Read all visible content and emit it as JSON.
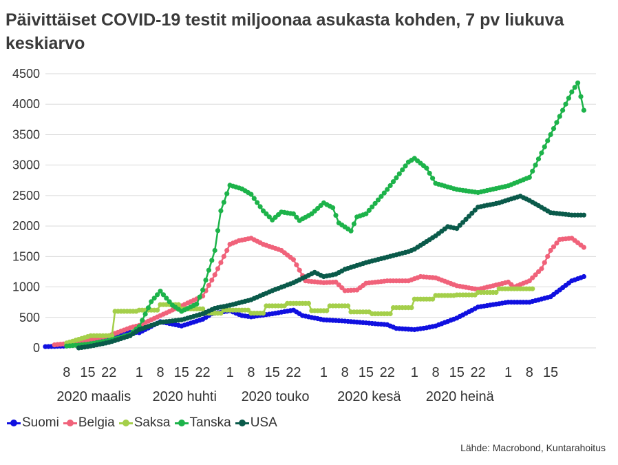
{
  "title": "Päivittäiset COVID-19 testit miljoonaa asukasta kohden, 7 pv liukuva keskiarvo",
  "source": "Lähde: Macrobond, Kuntarahoitus",
  "chart_data": {
    "type": "line",
    "ylim": [
      0,
      4500
    ],
    "yticks": [
      0,
      500,
      1000,
      1500,
      2000,
      2500,
      3000,
      3500,
      4000,
      4500
    ],
    "grid": true,
    "legend_position": "bottom-left",
    "x_day_ticks": [
      {
        "date": "2020-03-08",
        "label": "8"
      },
      {
        "date": "2020-03-15",
        "label": "15"
      },
      {
        "date": "2020-03-22",
        "label": "22"
      },
      {
        "date": "2020-04-01",
        "label": "1"
      },
      {
        "date": "2020-04-08",
        "label": "8"
      },
      {
        "date": "2020-04-15",
        "label": "15"
      },
      {
        "date": "2020-04-22",
        "label": "22"
      },
      {
        "date": "2020-05-01",
        "label": "1"
      },
      {
        "date": "2020-05-08",
        "label": "8"
      },
      {
        "date": "2020-05-15",
        "label": "15"
      },
      {
        "date": "2020-05-22",
        "label": "22"
      },
      {
        "date": "2020-06-01",
        "label": "1"
      },
      {
        "date": "2020-06-08",
        "label": "8"
      },
      {
        "date": "2020-06-15",
        "label": "15"
      },
      {
        "date": "2020-06-22",
        "label": "22"
      },
      {
        "date": "2020-07-01",
        "label": "1"
      },
      {
        "date": "2020-07-08",
        "label": "8"
      },
      {
        "date": "2020-07-15",
        "label": "15"
      },
      {
        "date": "2020-07-22",
        "label": "22"
      },
      {
        "date": "2020-08-01",
        "label": "1"
      },
      {
        "date": "2020-08-08",
        "label": "8"
      },
      {
        "date": "2020-08-15",
        "label": "15"
      }
    ],
    "x_month_labels": [
      {
        "date": "2020-03-17",
        "label": "2020 maalis"
      },
      {
        "date": "2020-04-16",
        "label": "2020 huhti"
      },
      {
        "date": "2020-05-16",
        "label": "2020 touko"
      },
      {
        "date": "2020-06-16",
        "label": "2020 kesä"
      },
      {
        "date": "2020-07-16",
        "label": "2020 heinä"
      }
    ],
    "series": [
      {
        "name": "Suomi",
        "color": "#1010e0",
        "points": [
          [
            "2020-03-01",
            20
          ],
          [
            "2020-03-08",
            30
          ],
          [
            "2020-03-15",
            70
          ],
          [
            "2020-03-22",
            180
          ],
          [
            "2020-03-27",
            270
          ],
          [
            "2020-04-01",
            250
          ],
          [
            "2020-04-08",
            430
          ],
          [
            "2020-04-15",
            360
          ],
          [
            "2020-04-22",
            470
          ],
          [
            "2020-04-25",
            560
          ],
          [
            "2020-05-01",
            610
          ],
          [
            "2020-05-05",
            530
          ],
          [
            "2020-05-08",
            510
          ],
          [
            "2020-05-15",
            560
          ],
          [
            "2020-05-22",
            620
          ],
          [
            "2020-05-25",
            530
          ],
          [
            "2020-06-01",
            460
          ],
          [
            "2020-06-08",
            440
          ],
          [
            "2020-06-15",
            410
          ],
          [
            "2020-06-22",
            380
          ],
          [
            "2020-06-25",
            320
          ],
          [
            "2020-07-01",
            300
          ],
          [
            "2020-07-05",
            330
          ],
          [
            "2020-07-08",
            360
          ],
          [
            "2020-07-15",
            490
          ],
          [
            "2020-07-22",
            670
          ],
          [
            "2020-08-01",
            750
          ],
          [
            "2020-08-08",
            750
          ],
          [
            "2020-08-15",
            840
          ],
          [
            "2020-08-22",
            1100
          ],
          [
            "2020-08-26",
            1170
          ]
        ]
      },
      {
        "name": "Belgia",
        "color": "#f0627a",
        "points": [
          [
            "2020-03-04",
            50
          ],
          [
            "2020-03-08",
            70
          ],
          [
            "2020-03-15",
            130
          ],
          [
            "2020-03-22",
            200
          ],
          [
            "2020-03-29",
            330
          ],
          [
            "2020-04-01",
            370
          ],
          [
            "2020-04-08",
            530
          ],
          [
            "2020-04-15",
            690
          ],
          [
            "2020-04-22",
            850
          ],
          [
            "2020-04-26",
            1200
          ],
          [
            "2020-05-01",
            1700
          ],
          [
            "2020-05-04",
            1760
          ],
          [
            "2020-05-08",
            1800
          ],
          [
            "2020-05-12",
            1700
          ],
          [
            "2020-05-18",
            1600
          ],
          [
            "2020-05-22",
            1450
          ],
          [
            "2020-05-26",
            1100
          ],
          [
            "2020-06-01",
            1070
          ],
          [
            "2020-06-05",
            1080
          ],
          [
            "2020-06-08",
            940
          ],
          [
            "2020-06-12",
            950
          ],
          [
            "2020-06-15",
            1060
          ],
          [
            "2020-06-22",
            1100
          ],
          [
            "2020-06-29",
            1100
          ],
          [
            "2020-07-03",
            1170
          ],
          [
            "2020-07-08",
            1150
          ],
          [
            "2020-07-15",
            1020
          ],
          [
            "2020-07-22",
            960
          ],
          [
            "2020-08-01",
            1080
          ],
          [
            "2020-08-03",
            1000
          ],
          [
            "2020-08-08",
            1100
          ],
          [
            "2020-08-12",
            1300
          ],
          [
            "2020-08-15",
            1600
          ],
          [
            "2020-08-18",
            1780
          ],
          [
            "2020-08-22",
            1800
          ],
          [
            "2020-08-26",
            1650
          ]
        ]
      },
      {
        "name": "Saksa",
        "color": "#a4cf4a",
        "points": [
          [
            "2020-03-08",
            80
          ],
          [
            "2020-03-16",
            200
          ],
          [
            "2020-03-23",
            200
          ],
          [
            "2020-03-24",
            600
          ],
          [
            "2020-03-31",
            600
          ],
          [
            "2020-04-01",
            620
          ],
          [
            "2020-04-07",
            620
          ],
          [
            "2020-04-08",
            710
          ],
          [
            "2020-04-14",
            710
          ],
          [
            "2020-04-15",
            640
          ],
          [
            "2020-04-22",
            640
          ],
          [
            "2020-04-23",
            570
          ],
          [
            "2020-04-28",
            570
          ],
          [
            "2020-04-29",
            620
          ],
          [
            "2020-05-07",
            620
          ],
          [
            "2020-05-08",
            570
          ],
          [
            "2020-05-12",
            570
          ],
          [
            "2020-05-13",
            690
          ],
          [
            "2020-05-19",
            690
          ],
          [
            "2020-05-20",
            730
          ],
          [
            "2020-05-27",
            730
          ],
          [
            "2020-05-28",
            610
          ],
          [
            "2020-06-02",
            610
          ],
          [
            "2020-06-03",
            690
          ],
          [
            "2020-06-09",
            690
          ],
          [
            "2020-06-10",
            590
          ],
          [
            "2020-06-16",
            590
          ],
          [
            "2020-06-17",
            560
          ],
          [
            "2020-06-23",
            560
          ],
          [
            "2020-06-24",
            660
          ],
          [
            "2020-06-30",
            660
          ],
          [
            "2020-07-01",
            800
          ],
          [
            "2020-07-07",
            800
          ],
          [
            "2020-07-08",
            860
          ],
          [
            "2020-07-14",
            860
          ],
          [
            "2020-07-15",
            870
          ],
          [
            "2020-07-21",
            870
          ],
          [
            "2020-07-22",
            910
          ],
          [
            "2020-07-28",
            910
          ],
          [
            "2020-07-29",
            970
          ],
          [
            "2020-08-09",
            970
          ]
        ]
      },
      {
        "name": "Tanska",
        "color": "#1db34a",
        "points": [
          [
            "2020-03-08",
            30
          ],
          [
            "2020-03-15",
            60
          ],
          [
            "2020-03-22",
            120
          ],
          [
            "2020-03-29",
            220
          ],
          [
            "2020-04-01",
            350
          ],
          [
            "2020-04-05",
            760
          ],
          [
            "2020-04-08",
            930
          ],
          [
            "2020-04-12",
            700
          ],
          [
            "2020-04-15",
            600
          ],
          [
            "2020-04-20",
            720
          ],
          [
            "2020-04-22",
            950
          ],
          [
            "2020-04-26",
            1600
          ],
          [
            "2020-04-28",
            2250
          ],
          [
            "2020-05-01",
            2670
          ],
          [
            "2020-05-05",
            2610
          ],
          [
            "2020-05-08",
            2520
          ],
          [
            "2020-05-12",
            2250
          ],
          [
            "2020-05-15",
            2100
          ],
          [
            "2020-05-18",
            2230
          ],
          [
            "2020-05-22",
            2200
          ],
          [
            "2020-05-24",
            2090
          ],
          [
            "2020-05-28",
            2200
          ],
          [
            "2020-06-01",
            2380
          ],
          [
            "2020-06-04",
            2300
          ],
          [
            "2020-06-06",
            2050
          ],
          [
            "2020-06-10",
            1920
          ],
          [
            "2020-06-12",
            2150
          ],
          [
            "2020-06-15",
            2200
          ],
          [
            "2020-06-22",
            2600
          ],
          [
            "2020-06-29",
            3050
          ],
          [
            "2020-07-01",
            3110
          ],
          [
            "2020-07-05",
            2950
          ],
          [
            "2020-07-08",
            2700
          ],
          [
            "2020-07-15",
            2600
          ],
          [
            "2020-07-22",
            2550
          ],
          [
            "2020-08-01",
            2660
          ],
          [
            "2020-08-08",
            2800
          ],
          [
            "2020-08-12",
            3200
          ],
          [
            "2020-08-15",
            3500
          ],
          [
            "2020-08-19",
            3900
          ],
          [
            "2020-08-22",
            4200
          ],
          [
            "2020-08-24",
            4350
          ],
          [
            "2020-08-26",
            3900
          ]
        ]
      },
      {
        "name": "USA",
        "color": "#0a5a4a",
        "points": [
          [
            "2020-03-12",
            0
          ],
          [
            "2020-03-15",
            20
          ],
          [
            "2020-03-22",
            90
          ],
          [
            "2020-03-29",
            200
          ],
          [
            "2020-04-01",
            300
          ],
          [
            "2020-04-08",
            420
          ],
          [
            "2020-04-15",
            460
          ],
          [
            "2020-04-22",
            560
          ],
          [
            "2020-04-26",
            650
          ],
          [
            "2020-05-01",
            700
          ],
          [
            "2020-05-08",
            790
          ],
          [
            "2020-05-15",
            940
          ],
          [
            "2020-05-22",
            1070
          ],
          [
            "2020-05-29",
            1240
          ],
          [
            "2020-06-01",
            1170
          ],
          [
            "2020-06-05",
            1210
          ],
          [
            "2020-06-08",
            1290
          ],
          [
            "2020-06-15",
            1400
          ],
          [
            "2020-06-22",
            1490
          ],
          [
            "2020-06-29",
            1580
          ],
          [
            "2020-07-01",
            1620
          ],
          [
            "2020-07-08",
            1840
          ],
          [
            "2020-07-12",
            1990
          ],
          [
            "2020-07-15",
            1960
          ],
          [
            "2020-07-22",
            2310
          ],
          [
            "2020-07-29",
            2380
          ],
          [
            "2020-08-01",
            2430
          ],
          [
            "2020-08-05",
            2490
          ],
          [
            "2020-08-08",
            2420
          ],
          [
            "2020-08-15",
            2220
          ],
          [
            "2020-08-22",
            2180
          ],
          [
            "2020-08-26",
            2180
          ]
        ]
      }
    ]
  }
}
